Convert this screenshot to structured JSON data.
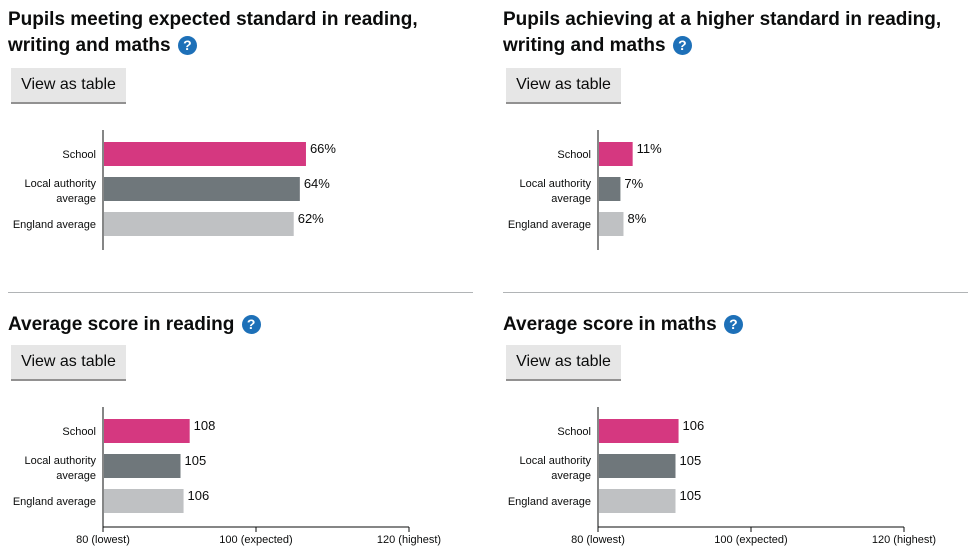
{
  "colors": {
    "school": "#d53880",
    "local": "#6f777b",
    "england": "#bfc1c3",
    "link": "#1d70b8"
  },
  "help_icon": "question-mark-icon",
  "view_table_label": "View as table",
  "chart_data": [
    {
      "type": "bar",
      "orientation": "horizontal",
      "title": "Pupils meeting expected standard in reading, writing and maths",
      "categories": [
        "School",
        "Local authority average",
        "England average"
      ],
      "values": [
        66,
        64,
        62
      ],
      "value_labels": [
        "66%",
        "64%",
        "62%"
      ],
      "xlim": [
        0,
        100
      ],
      "x_ticks": [],
      "grid": false
    },
    {
      "type": "bar",
      "orientation": "horizontal",
      "title": "Pupils achieving at a higher standard in reading, writing and maths",
      "categories": [
        "School",
        "Local authority average",
        "England average"
      ],
      "values": [
        11,
        7,
        8
      ],
      "value_labels": [
        "11%",
        "7%",
        "8%"
      ],
      "xlim": [
        0,
        100
      ],
      "x_ticks": [],
      "grid": false
    },
    {
      "type": "bar",
      "orientation": "horizontal",
      "title": "Average score in reading",
      "categories": [
        "School",
        "Local authority average",
        "England average"
      ],
      "values": [
        108,
        105,
        106
      ],
      "value_labels": [
        "108",
        "105",
        "106"
      ],
      "xlim": [
        80,
        120
      ],
      "x_ticks": [
        {
          "value": 80,
          "label": "80 (lowest)"
        },
        {
          "value": 100,
          "label": "100 (expected)"
        },
        {
          "value": 120,
          "label": "120 (highest)"
        }
      ],
      "grid": false
    },
    {
      "type": "bar",
      "orientation": "horizontal",
      "title": "Average score in maths",
      "categories": [
        "School",
        "Local authority average",
        "England average"
      ],
      "values": [
        106,
        105,
        105
      ],
      "value_labels": [
        "106",
        "105",
        "105"
      ],
      "xlim": [
        80,
        120
      ],
      "x_ticks": [
        {
          "value": 80,
          "label": "80 (lowest)"
        },
        {
          "value": 100,
          "label": "100 (expected)"
        },
        {
          "value": 120,
          "label": "120 (highest)"
        }
      ],
      "grid": false
    }
  ]
}
